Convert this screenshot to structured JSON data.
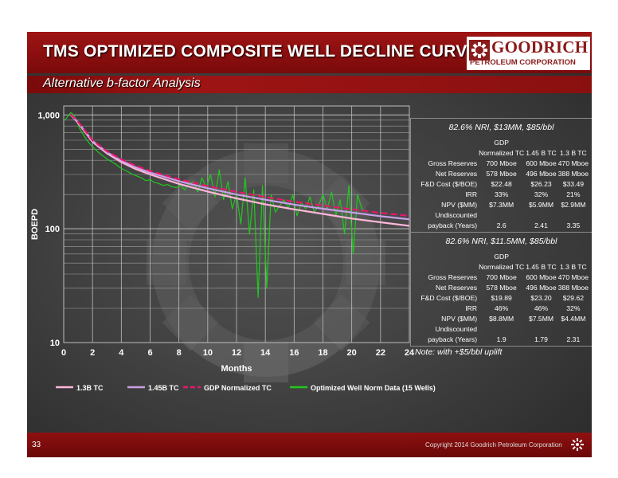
{
  "header": {
    "title": "TMS OPTIMIZED COMPOSITE WELL DECLINE CURVE",
    "subtitle": "Alternative b-factor Analysis"
  },
  "logo": {
    "name": "GOODRICH",
    "subtitle": "PETROLEUM CORPORATION",
    "icon": "gear-logo-icon"
  },
  "chart_data": {
    "type": "line",
    "xlabel": "Months",
    "ylabel": "BOEPD",
    "xlim": [
      0,
      24
    ],
    "ylim": [
      10,
      1200
    ],
    "yscale": "log",
    "x_ticks": [
      0,
      2,
      4,
      6,
      8,
      10,
      12,
      14,
      16,
      18,
      20,
      22,
      24
    ],
    "x_tick_labels": [
      "0",
      "2",
      "4",
      "6",
      "8",
      "10",
      "12",
      "14",
      "16",
      "18",
      "20",
      "22",
      "24"
    ],
    "y_ticks": [
      10,
      100,
      1000
    ],
    "y_tick_labels": [
      "10",
      "100",
      "1,000"
    ],
    "grid": true,
    "legend_placement": "bottom",
    "x": [
      0.5,
      1,
      2,
      3,
      4,
      5,
      6,
      8,
      10,
      12,
      14,
      16,
      18,
      20,
      22,
      24
    ],
    "series": [
      {
        "name": "1.3B TC",
        "color": "#ffb6d9",
        "style": "solid",
        "values": [
          1000,
          850,
          580,
          460,
          385,
          335,
          300,
          248,
          212,
          185,
          164,
          148,
          135,
          123,
          114,
          106
        ]
      },
      {
        "name": "1.45B TC",
        "color": "#c9a0e8",
        "style": "solid",
        "values": [
          1000,
          860,
          590,
          470,
          397,
          347,
          312,
          262,
          227,
          200,
          180,
          163,
          150,
          139,
          129,
          121
        ]
      },
      {
        "name": "GDP Normalized TC",
        "color": "#e8176d",
        "style": "dashed",
        "values": [
          1010,
          870,
          600,
          480,
          408,
          358,
          322,
          272,
          237,
          211,
          190,
          173,
          160,
          148,
          138,
          130
        ]
      },
      {
        "name": "Optimized Well Norm Data (15 Wells)",
        "color": "#22c81e",
        "style": "solid",
        "x": [
          0.1,
          0.3,
          0.5,
          0.7,
          0.9,
          1.1,
          1.3,
          1.5,
          1.8,
          2.1,
          2.4,
          2.7,
          3.0,
          3.3,
          3.6,
          3.9,
          4.2,
          4.5,
          4.8,
          5.1,
          5.4,
          5.7,
          6.0,
          6.3,
          6.6,
          6.9,
          7.2,
          7.5,
          7.8,
          8.1,
          8.4,
          8.7,
          9.0,
          9.3,
          9.6,
          9.9,
          10.2,
          10.5,
          10.8,
          11.1,
          11.4,
          11.7,
          12.0,
          12.3,
          12.6,
          12.9,
          13.2,
          13.5,
          13.8,
          14.1,
          14.4,
          14.7,
          15.0,
          15.3,
          15.6,
          15.9,
          16.2,
          16.5,
          16.8,
          17.1,
          17.4,
          17.7,
          18.0,
          18.3,
          18.6,
          18.9,
          19.2,
          19.5,
          19.8,
          20.1,
          20.4,
          20.7,
          21.0
        ],
        "values": [
          900,
          980,
          1050,
          1000,
          880,
          760,
          690,
          630,
          560,
          510,
          470,
          440,
          410,
          390,
          370,
          345,
          330,
          315,
          300,
          290,
          280,
          265,
          270,
          255,
          250,
          240,
          245,
          235,
          230,
          240,
          220,
          250,
          260,
          210,
          280,
          230,
          300,
          190,
          330,
          180,
          260,
          150,
          200,
          110,
          280,
          90,
          220,
          25,
          240,
          30,
          200,
          140,
          160,
          180,
          150,
          200,
          130,
          170,
          150,
          190,
          140,
          160,
          200,
          150,
          210,
          130,
          180,
          90,
          240,
          60,
          200,
          150,
          140
        ]
      }
    ]
  },
  "tables": [
    {
      "title": "82.6% NRI, $13MM, $85/bbl",
      "col_headers": [
        "GDP",
        "Normalized TC",
        "1.45 B TC",
        "1.3 B TC"
      ],
      "rows": [
        {
          "label": "Gross Reserves",
          "values": [
            "700 Mboe",
            "600 Mboe",
            "470 Mboe"
          ]
        },
        {
          "label": "Net Reserves",
          "values": [
            "578 Mboe",
            "496 Mboe",
            "388 Mboe"
          ]
        },
        {
          "label": "F&D Cost ($/BOE)",
          "values": [
            "$22.48",
            "$26.23",
            "$33.49"
          ]
        },
        {
          "label": "IRR",
          "values": [
            "33%",
            "32%",
            "21%"
          ]
        },
        {
          "label": "NPV ($MM)",
          "values": [
            "$7.3MM",
            "$5.9MM",
            "$2.9MM"
          ]
        },
        {
          "label": "Undiscounted",
          "values": [
            "",
            "",
            ""
          ]
        },
        {
          "label": "payback (Years)",
          "values": [
            "2.6",
            "2.41",
            "3.35"
          ]
        }
      ]
    },
    {
      "title": "82.6% NRI, $11.5MM, $85/bbl",
      "col_headers": [
        "GDP",
        "Normalized TC",
        "1.45 B TC",
        "1.3 B TC"
      ],
      "rows": [
        {
          "label": "Gross Reserves",
          "values": [
            "700 Mboe",
            "600 Mboe",
            "470 Mboe"
          ]
        },
        {
          "label": "Net Reserves",
          "values": [
            "578 Mboe",
            "496 Mboe",
            "388 Mboe"
          ]
        },
        {
          "label": "F&D Cost ($/BOE)",
          "values": [
            "$19.89",
            "$23.20",
            "$29.62"
          ]
        },
        {
          "label": "IRR",
          "values": [
            "46%",
            "46%",
            "32%"
          ]
        },
        {
          "label": "NPV ($MM)",
          "values": [
            "$8.8MM",
            "$7.5MM",
            "$4.4MM"
          ]
        },
        {
          "label": "Undiscounted",
          "values": [
            "",
            "",
            ""
          ]
        },
        {
          "label": "payback (Years)",
          "values": [
            "1.9",
            "1.79",
            "2.31"
          ]
        }
      ]
    }
  ],
  "note": "Note:  with +$5/bbl uplift",
  "footer": {
    "page_number": "33",
    "copyright": "Copyright 2014 Goodrich Petroleum Corporation",
    "icon": "gear-icon"
  }
}
